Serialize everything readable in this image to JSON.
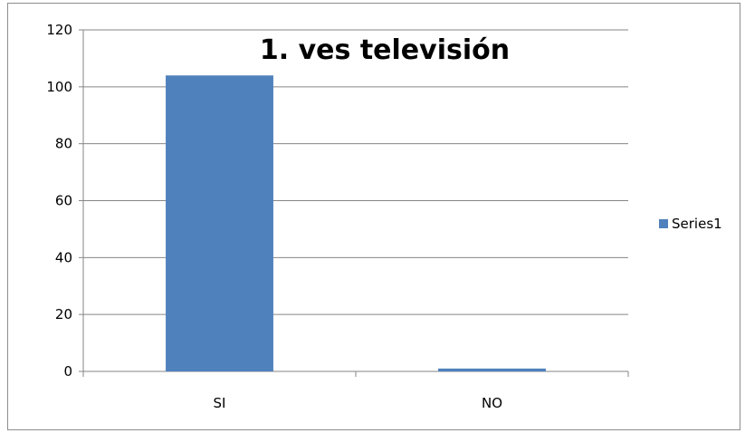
{
  "chart_data": {
    "type": "bar",
    "title": "1. ves televisión",
    "xlabel": "",
    "ylabel": "",
    "categories": [
      "SI",
      "NO"
    ],
    "series": [
      {
        "name": "Series1",
        "values": [
          104,
          1
        ],
        "color": "#4f81bd"
      }
    ],
    "ylim": [
      0,
      120
    ],
    "yticks": [
      0,
      20,
      40,
      60,
      80,
      100,
      120
    ],
    "grid": true,
    "legend_position": "right"
  }
}
